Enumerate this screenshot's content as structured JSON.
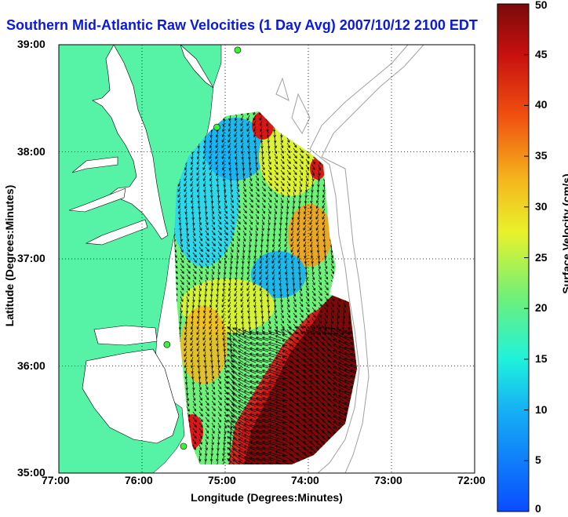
{
  "title": "Southern Mid-Atlantic Raw Velocities (1 Day Avg) 2007/10/12 2100 EDT",
  "chart_data": {
    "type": "map-vector-field",
    "xlabel": "Longitude (Degrees:Minutes)",
    "ylabel": "Latitude (Degrees:Minutes)",
    "x_ticks": [
      {
        "value": -77,
        "label": "77:00"
      },
      {
        "value": -76,
        "label": "76:00"
      },
      {
        "value": -75,
        "label": "75:00"
      },
      {
        "value": -74,
        "label": "74:00"
      },
      {
        "value": -73,
        "label": "73:00"
      },
      {
        "value": -72,
        "label": "72:00"
      }
    ],
    "y_ticks": [
      {
        "value": 39,
        "label": "39:00"
      },
      {
        "value": 38,
        "label": "38:00"
      },
      {
        "value": 37,
        "label": "37:00"
      },
      {
        "value": 36,
        "label": "36:00"
      },
      {
        "value": 35,
        "label": "35:00"
      }
    ],
    "xlim": [
      -77,
      -72
    ],
    "ylim": [
      35,
      39
    ],
    "grid": true,
    "colorbar": {
      "label": "Surface Velocity (cm/s)",
      "min": 0,
      "max": 50,
      "ticks": [
        0,
        5,
        10,
        15,
        20,
        25,
        30,
        35,
        40,
        45,
        50
      ]
    },
    "land_color": "#56f2a6",
    "radar_sites": [
      {
        "lon": -74.85,
        "lat": 38.95
      },
      {
        "lon": -75.1,
        "lat": 38.23
      },
      {
        "lon": -75.7,
        "lat": 36.2
      },
      {
        "lon": -75.5,
        "lat": 35.25
      }
    ],
    "velocity_regions": [
      {
        "lon": -75.4,
        "lat": 37.55,
        "speed": 12
      },
      {
        "lon": -74.9,
        "lat": 37.9,
        "speed": 10
      },
      {
        "lon": -74.3,
        "lat": 37.7,
        "speed": 20
      },
      {
        "lon": -74.0,
        "lat": 37.2,
        "speed": 30
      },
      {
        "lon": -74.5,
        "lat": 36.85,
        "speed": 8
      },
      {
        "lon": -75.1,
        "lat": 36.6,
        "speed": 18
      },
      {
        "lon": -74.8,
        "lat": 36.2,
        "speed": 27
      },
      {
        "lon": -74.2,
        "lat": 35.6,
        "speed": 50
      },
      {
        "lon": -75.4,
        "lat": 35.4,
        "speed": 40
      }
    ]
  }
}
